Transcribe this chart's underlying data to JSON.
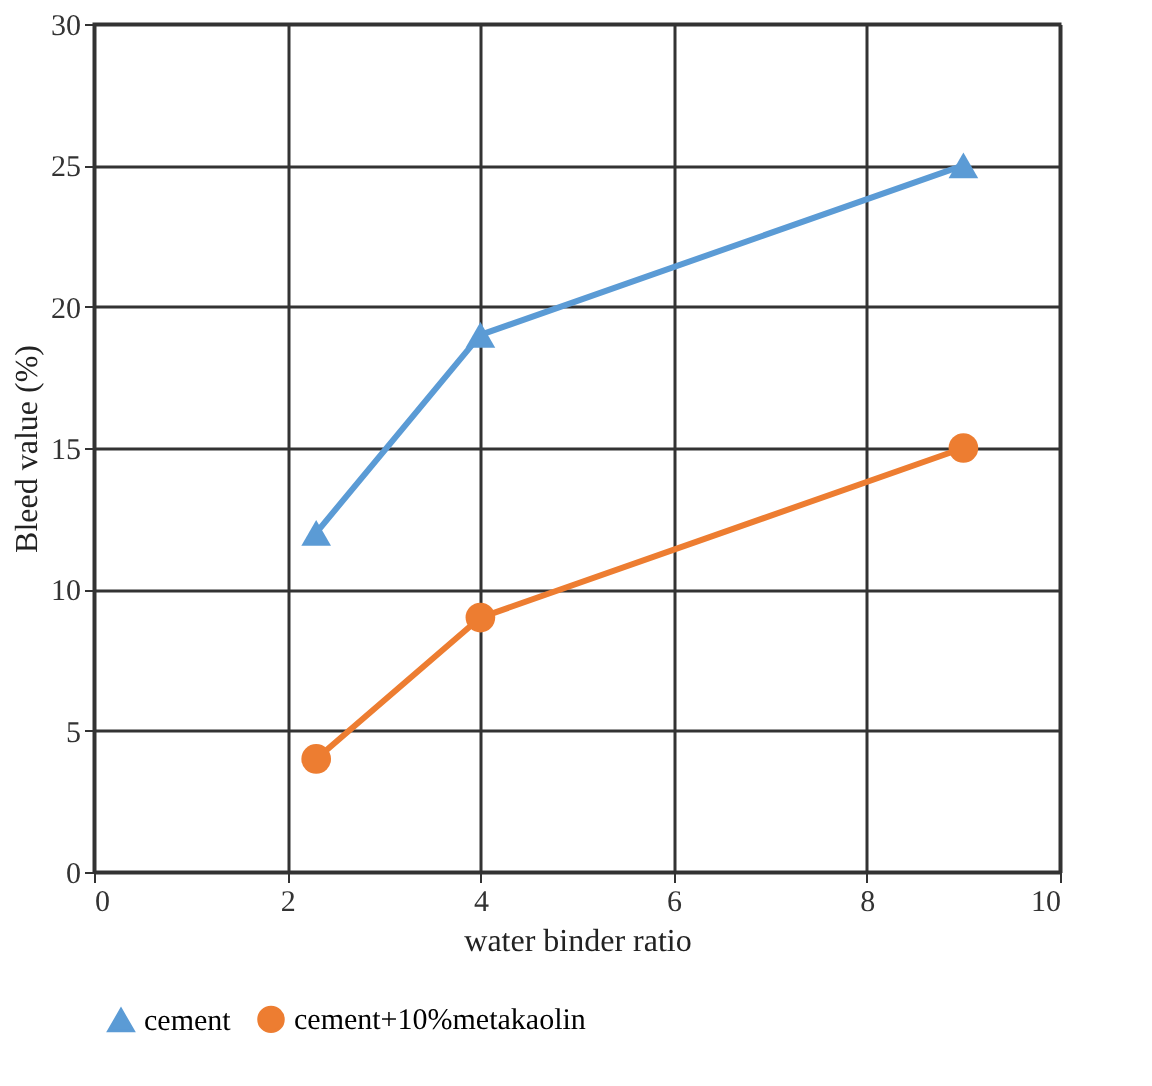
{
  "chart_data": {
    "type": "line",
    "xlabel": "water binder ratio",
    "ylabel": "Bleed value (%)",
    "xlim": [
      0,
      10
    ],
    "xticks": [
      0,
      2,
      4,
      6,
      8,
      10
    ],
    "ylim": [
      0,
      30
    ],
    "yticks": [
      0,
      5,
      10,
      15,
      20,
      25,
      30
    ],
    "grid": true,
    "legend": "bottom",
    "line_style": "solid",
    "series": [
      {
        "name": "cement",
        "color": "#5b9bd5",
        "marker": "triangle",
        "x": [
          2.3,
          4,
          9
        ],
        "values": [
          12,
          19,
          25
        ]
      },
      {
        "name": "cement+10%metakaolin",
        "color": "#ed7d31",
        "marker": "circle",
        "x": [
          2.3,
          4,
          9
        ],
        "values": [
          4,
          9,
          15
        ]
      }
    ]
  }
}
